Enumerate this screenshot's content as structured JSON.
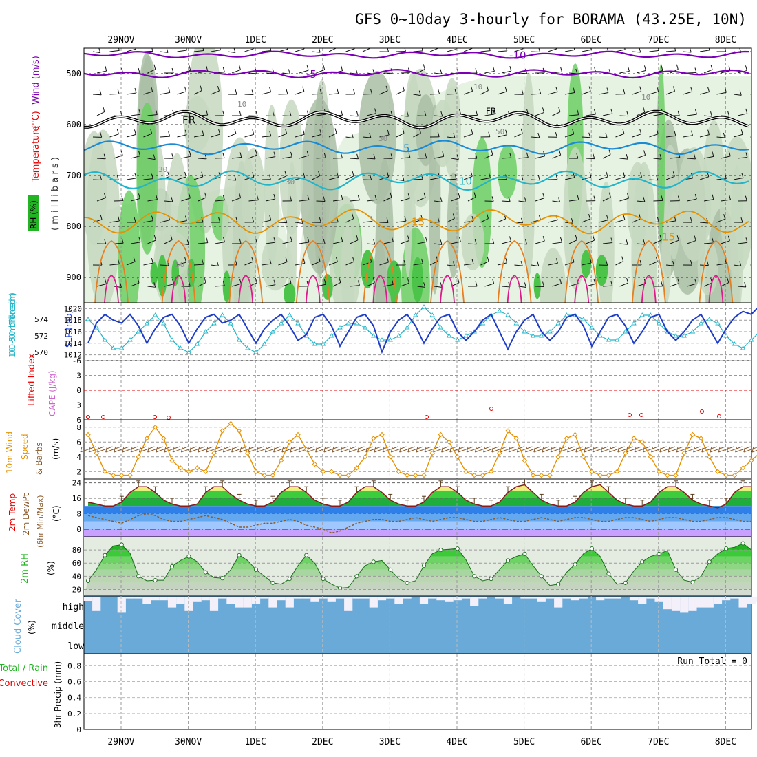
{
  "header": {
    "title": "GFS 0~10day 3-hourly for BORAMA (43.25E, 10N)"
  },
  "date_labels": [
    "29NOV",
    "30NOV",
    "1DEC",
    "2DEC",
    "3DEC",
    "4DEC",
    "5DEC",
    "6DEC",
    "7DEC",
    "8DEC"
  ],
  "colors": {
    "temp_red": "#e60000",
    "purple": "#7b00b4",
    "blue_line": "#1e3cc8",
    "cyan_line": "#22b4c8",
    "orange": "#e69100",
    "rh_green": "#22b422",
    "cloud_blue": "#6aaad8",
    "grid_grey": "#999999"
  },
  "chart_data": [
    {
      "id": "upper-air",
      "type": "heatmap",
      "ylabel_parts": [
        "Temperature",
        "(°C)",
        "Wind (m/s)"
      ],
      "y2label": "( m i l l i b a r s )",
      "legend": "RH (%)",
      "yticks": [
        500,
        600,
        700,
        800,
        900
      ],
      "ylim": [
        450,
        950
      ],
      "isotherms": [
        {
          "label": "-10",
          "level": 463
        },
        {
          "label": "-5",
          "level": 500
        },
        {
          "label": "FR",
          "level": 590
        },
        {
          "label": "5",
          "level": 645
        },
        {
          "label": "10",
          "level": 710
        },
        {
          "label": "15",
          "level": 790
        }
      ],
      "rh_labels": [
        "10",
        "10",
        "10",
        "30",
        "30",
        "30",
        "50",
        "50"
      ]
    },
    {
      "id": "slp-thickness",
      "type": "line",
      "ylabel": "1000~500mb Thickness (dm)",
      "y2label": "SLP (mb)",
      "yticks_left": [
        570,
        572,
        574
      ],
      "ylim_left": [
        569,
        576
      ],
      "yticks_right": [
        1012,
        1014,
        1016,
        1018,
        1020
      ],
      "ylim_right": [
        1011,
        1021
      ],
      "series": [
        {
          "name": "SLP (mb)",
          "values": [
            1014,
            1017.5,
            1019,
            1018,
            1017.5,
            1019,
            1017,
            1014,
            1016.5,
            1018.5,
            1019,
            1017,
            1014,
            1016.5,
            1018.5,
            1019,
            1017.5,
            1018,
            1019,
            1016.5,
            1014,
            1016.5,
            1018,
            1019,
            1017,
            1014.5,
            1015.5,
            1018.5,
            1019,
            1017,
            1013.5,
            1016,
            1018.5,
            1019,
            1017,
            1012.5,
            1016,
            1018,
            1019,
            1017,
            1014,
            1016.5,
            1018.5,
            1019,
            1016,
            1014.5,
            1016,
            1018,
            1019,
            1016,
            1013,
            1016,
            1018,
            1019,
            1016,
            1014.5,
            1016,
            1018.5,
            1019,
            1017,
            1013.5,
            1016,
            1018.5,
            1019,
            1017,
            1014,
            1016,
            1018.5,
            1019,
            1016,
            1014.5,
            1016,
            1018,
            1019,
            1016.5,
            1014,
            1016.5,
            1018.5,
            1019.5,
            1019,
            1020.5
          ]
        },
        {
          "name": "Thickness (dm)",
          "values": [
            574,
            573,
            571.5,
            570.5,
            570.5,
            571.5,
            572.5,
            573.5,
            574.5,
            573.5,
            571.5,
            570.5,
            570,
            571,
            572.5,
            573.5,
            574.5,
            573.5,
            571.5,
            570.5,
            570,
            571,
            572.5,
            573.5,
            574.5,
            573.5,
            572,
            571,
            571,
            572,
            573,
            573.5,
            573.5,
            573,
            572,
            571.5,
            571.5,
            572,
            573,
            574.5,
            575.5,
            574.5,
            573,
            572,
            571.5,
            572,
            572.5,
            573.5,
            574.5,
            575,
            574.5,
            573.5,
            572.5,
            572,
            572,
            572.5,
            573.5,
            574.5,
            574.5,
            574,
            573,
            572,
            571.5,
            571.5,
            572.5,
            573.5,
            574.5,
            574.5,
            573.5,
            572.5,
            572,
            572,
            572.5,
            573.5,
            574,
            573.5,
            572,
            571,
            570.5,
            571.5,
            572.5
          ]
        }
      ]
    },
    {
      "id": "lifted-index",
      "type": "line",
      "ylabel": "Lifted Index",
      "y2label": "CAPE (J/kg)",
      "yticks": [
        -6,
        -3,
        0,
        3,
        6
      ],
      "ytick_labels": [
        "-6",
        "-3",
        "0",
        "3",
        "6"
      ],
      "ylim": [
        -6,
        6
      ]
    },
    {
      "id": "wind10m",
      "type": "line",
      "ylabel_parts": [
        "10m Wind",
        "Speed",
        "& Barbs",
        "(m/s)"
      ],
      "yticks": [
        2,
        4,
        6,
        8
      ],
      "ylim": [
        1,
        9
      ],
      "series": [
        {
          "name": "10m Wind Speed (m/s)",
          "values": [
            7,
            4.5,
            2,
            1.5,
            1.5,
            1.5,
            4,
            6.5,
            8,
            6.5,
            3.5,
            2.5,
            2,
            2.5,
            2,
            4.5,
            7.5,
            8.5,
            7.5,
            4.5,
            2,
            1.5,
            1.5,
            3.5,
            6,
            7,
            5,
            3,
            2,
            2,
            1.5,
            1.5,
            2.5,
            4,
            6.5,
            7,
            4,
            2,
            1.5,
            1.5,
            1.5,
            4.5,
            7,
            6,
            4,
            2,
            1.5,
            1.5,
            2,
            4.5,
            7.5,
            6.5,
            3.5,
            1.5,
            1.5,
            1.5,
            4,
            6.5,
            7,
            4,
            2,
            1.5,
            1.5,
            2,
            4.5,
            6.5,
            6,
            4,
            2,
            1.5,
            1.5,
            4.5,
            7,
            6.5,
            4,
            2,
            1.5,
            1.5,
            2.5,
            3.5,
            4.5
          ]
        }
      ]
    },
    {
      "id": "temp2m",
      "type": "area",
      "ylabel_parts": [
        "2m Temp",
        "2m DewPt",
        "(6hr Min/Max)",
        "(°C)"
      ],
      "yticks": [
        0,
        8,
        16,
        24
      ],
      "ylim": [
        -4,
        26
      ],
      "series": [
        {
          "name": "2m Temp (°C)",
          "values": [
            14,
            13,
            12,
            12,
            14,
            19,
            22,
            22,
            19,
            15,
            13,
            12,
            12,
            13,
            19,
            22,
            22,
            18,
            15,
            13,
            12,
            12,
            14,
            19,
            22,
            22,
            19,
            15,
            13,
            12,
            12,
            14,
            19,
            22,
            22,
            19,
            15,
            13,
            12,
            12,
            14,
            19,
            22,
            22,
            19,
            15,
            13,
            12,
            12,
            14,
            19,
            22,
            23,
            19,
            15,
            13,
            12,
            12,
            14,
            19,
            22,
            23,
            19,
            15,
            13,
            12,
            12,
            14,
            19,
            22,
            22,
            19,
            15,
            13,
            12,
            11,
            13,
            19,
            22,
            22,
            19,
            15,
            13,
            12,
            11,
            10,
            14
          ]
        },
        {
          "name": "2m DewPt (°C)",
          "values": [
            7,
            6,
            5,
            4,
            3,
            5,
            7,
            8,
            7,
            5,
            4,
            4,
            5,
            6,
            7,
            6,
            5,
            3,
            1,
            1,
            2,
            3,
            3,
            4,
            5,
            4,
            2,
            1,
            0,
            -2,
            -1,
            1,
            3,
            4,
            5,
            5,
            4,
            4,
            5,
            6,
            5,
            4,
            5,
            6,
            6,
            5,
            4,
            4,
            5,
            6,
            5,
            4,
            4,
            5,
            6,
            5,
            4,
            5,
            6,
            6,
            5,
            4,
            4,
            5,
            6,
            6,
            5,
            4,
            5,
            6,
            6,
            5,
            4,
            4,
            5,
            6,
            6,
            5,
            4,
            4,
            5,
            6,
            6,
            7,
            9,
            11
          ]
        }
      ]
    },
    {
      "id": "rh2m",
      "type": "area",
      "ylabel": "2m RH",
      "unit": "(%)",
      "yticks": [
        20,
        40,
        60,
        80
      ],
      "ylim": [
        10,
        100
      ],
      "series": [
        {
          "name": "2m RH (%)",
          "values": [
            33,
            50,
            72,
            86,
            88,
            75,
            40,
            33,
            34,
            34,
            55,
            64,
            70,
            62,
            46,
            38,
            37,
            50,
            72,
            64,
            50,
            40,
            30,
            28,
            36,
            56,
            72,
            60,
            36,
            28,
            22,
            23,
            40,
            56,
            62,
            64,
            50,
            36,
            30,
            33,
            56,
            74,
            80,
            81,
            82,
            65,
            40,
            33,
            36,
            50,
            64,
            70,
            74,
            56,
            40,
            26,
            28,
            46,
            58,
            74,
            82,
            70,
            44,
            28,
            30,
            48,
            62,
            70,
            74,
            79,
            50,
            34,
            31,
            40,
            62,
            74,
            82,
            84,
            90,
            80,
            62
          ]
        }
      ]
    },
    {
      "id": "cloud",
      "type": "bar",
      "ylabel": "Cloud Cover",
      "unit": "(%)",
      "levels": [
        "high",
        "middle",
        "low"
      ],
      "high_cover": [
        75,
        20,
        100,
        100,
        10,
        90,
        90,
        60,
        80,
        80,
        40,
        60,
        20,
        70,
        80,
        20,
        90,
        60,
        40,
        40,
        60,
        90,
        40,
        80,
        40,
        90,
        90,
        70,
        90,
        70,
        90,
        20,
        90,
        90,
        40,
        80,
        90,
        60,
        90,
        100,
        60,
        90,
        80,
        70,
        80,
        90,
        50,
        90,
        100,
        90,
        60,
        100,
        90,
        90,
        70,
        90,
        40,
        90,
        80,
        90,
        100,
        80,
        90,
        90,
        100,
        80,
        60,
        90,
        70,
        30,
        20,
        10,
        20,
        40,
        40,
        60,
        80,
        90,
        40,
        60,
        70
      ]
    },
    {
      "id": "precip",
      "type": "bar",
      "ylabel_parts": [
        "Total / Rain",
        "Convective",
        "3hr Precip (mm)"
      ],
      "yticks": [
        0,
        0.2,
        0.4,
        0.6,
        0.8
      ],
      "ytick_labels": [
        "0",
        "0.2",
        "0.4",
        "0.6",
        "0.8"
      ],
      "ylim": [
        0,
        0.95
      ],
      "run_total": "Run Total = 0",
      "values": []
    }
  ]
}
